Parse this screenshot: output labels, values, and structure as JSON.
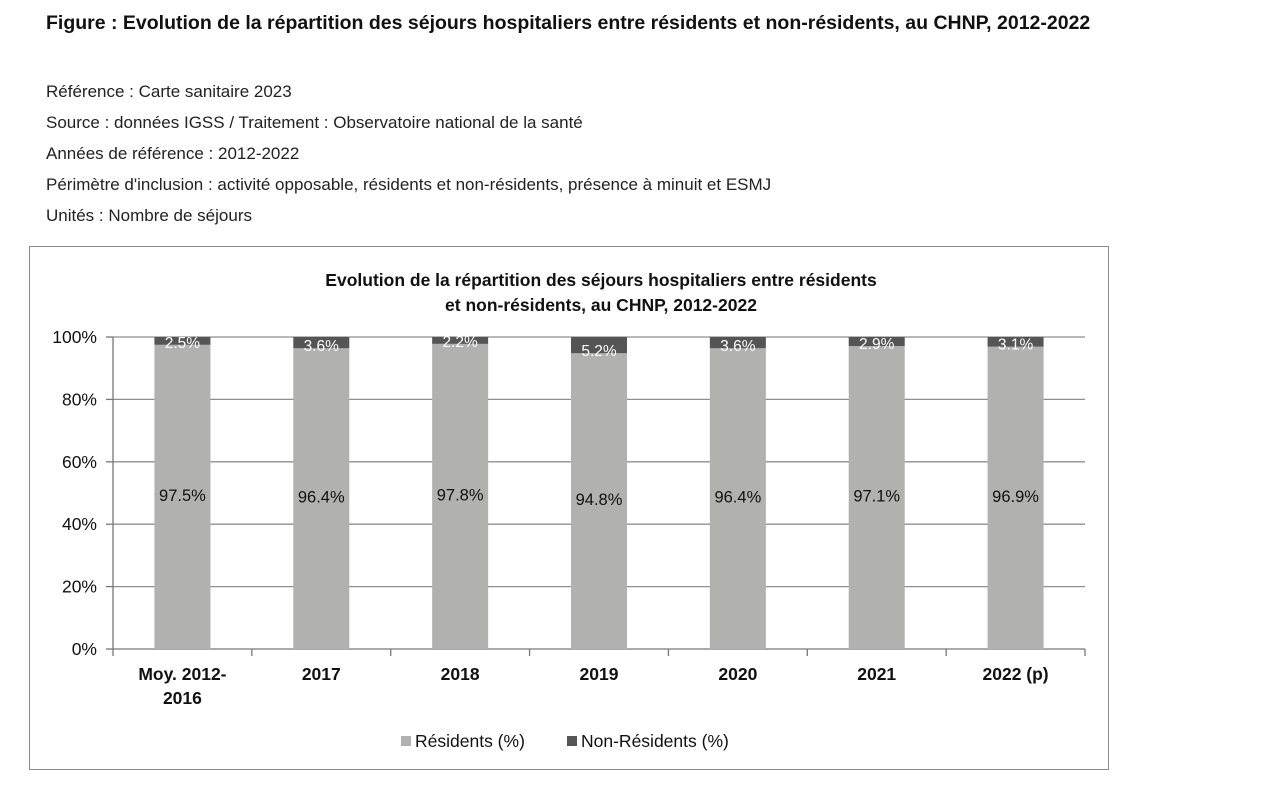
{
  "figure": {
    "title": "Figure : Evolution de la répartition des séjours hospitaliers entre résidents et non-résidents, au CHNP, 2012-2022",
    "meta": [
      "Référence : Carte sanitaire 2023",
      "Source : données IGSS / Traitement : Observatoire national de la santé",
      "Années de référence : 2012-2022",
      "Périmètre d'inclusion : activité opposable, résidents et non-résidents, présence à minuit et ESMJ",
      "Unités : Nombre de séjours"
    ]
  },
  "chart_data": {
    "type": "bar",
    "stacked": true,
    "title_lines": [
      "Evolution de la répartition des séjours hospitaliers entre résidents",
      "et non-résidents, au CHNP, 2012-2022"
    ],
    "categories": [
      [
        "Moy. 2012-",
        "2016"
      ],
      [
        "2017"
      ],
      [
        "2018"
      ],
      [
        "2019"
      ],
      [
        "2020"
      ],
      [
        "2021"
      ],
      [
        "2022 (p)"
      ]
    ],
    "series": [
      {
        "name": "Résidents (%)",
        "values": [
          97.5,
          96.4,
          97.8,
          94.8,
          96.4,
          97.1,
          96.9
        ],
        "labels": [
          "97.5%",
          "96.4%",
          "97.8%",
          "94.8%",
          "96.4%",
          "97.1%",
          "96.9%"
        ],
        "color": "#b1b1af"
      },
      {
        "name": "Non-Résidents (%)",
        "values": [
          2.5,
          3.6,
          2.2,
          5.2,
          3.6,
          2.9,
          3.1
        ],
        "labels": [
          "2.5%",
          "3.6%",
          "2.2%",
          "5.2%",
          "3.6%",
          "2.9%",
          "3.1%"
        ],
        "color": "#555555"
      }
    ],
    "ylim": [
      0,
      100
    ],
    "yticks": [
      "0%",
      "20%",
      "40%",
      "60%",
      "80%",
      "100%"
    ],
    "grid": true,
    "legend_position": "bottom"
  }
}
